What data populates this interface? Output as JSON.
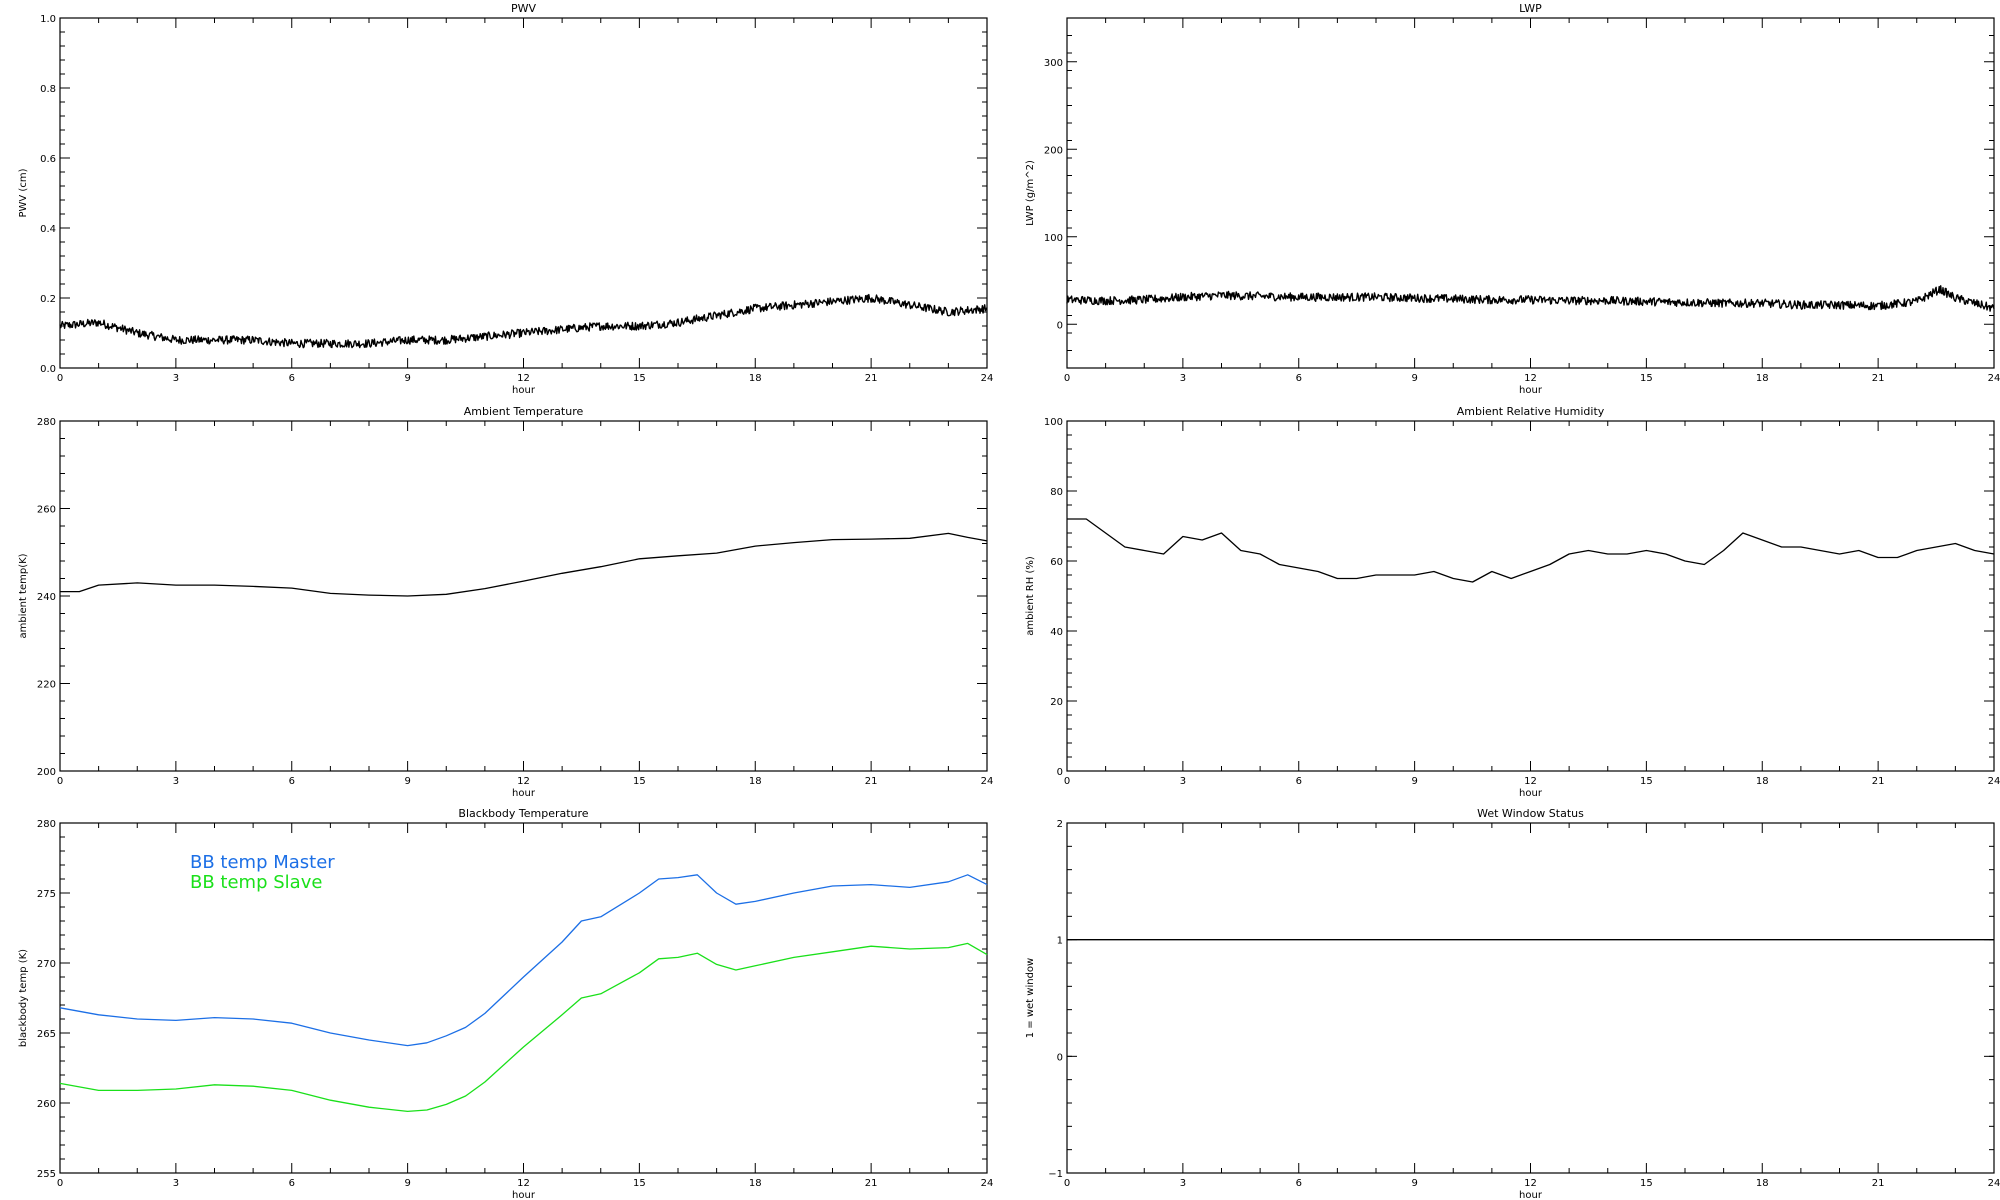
{
  "chart_data": [
    {
      "type": "line",
      "title": "PWV",
      "xlabel": "hour",
      "ylabel": "PWV (cm)",
      "xlim": [
        0,
        24
      ],
      "ylim": [
        0.0,
        1.0
      ],
      "xticks": [
        "0",
        "3",
        "6",
        "9",
        "12",
        "15",
        "18",
        "21",
        "24"
      ],
      "yticks": [
        "0.0",
        "0.2",
        "0.4",
        "0.6",
        "0.8",
        "1.0"
      ],
      "noisy": true,
      "series": [
        {
          "color": "#000000",
          "x": [
            0,
            1,
            2,
            3,
            4,
            5,
            6,
            7,
            8,
            9,
            10,
            11,
            12,
            13,
            14,
            15,
            16,
            17,
            18,
            19,
            20,
            21,
            22,
            23,
            24
          ],
          "values": [
            0.12,
            0.13,
            0.1,
            0.08,
            0.08,
            0.08,
            0.07,
            0.07,
            0.07,
            0.08,
            0.08,
            0.09,
            0.1,
            0.11,
            0.12,
            0.12,
            0.13,
            0.15,
            0.17,
            0.18,
            0.19,
            0.2,
            0.18,
            0.16,
            0.17
          ]
        }
      ]
    },
    {
      "type": "line",
      "title": "LWP",
      "xlabel": "hour",
      "ylabel": "LWP (g/m^2)",
      "xlim": [
        0,
        24
      ],
      "ylim": [
        -50,
        350
      ],
      "xticks": [
        "0",
        "3",
        "6",
        "9",
        "12",
        "15",
        "18",
        "21",
        "24"
      ],
      "yticks": [
        "0",
        "100",
        "200",
        "300"
      ],
      "noisy": true,
      "series": [
        {
          "color": "#000000",
          "x": [
            0,
            1,
            2,
            3,
            4,
            5,
            6,
            7,
            8,
            9,
            10,
            11,
            12,
            13,
            14,
            15,
            16,
            17,
            18,
            19,
            20,
            21,
            22,
            22.6,
            23,
            24
          ],
          "values": [
            28,
            27,
            28,
            31,
            33,
            32,
            31,
            31,
            31,
            30,
            29,
            28,
            28,
            27,
            27,
            26,
            25,
            24,
            24,
            22,
            22,
            21,
            26,
            40,
            30,
            18
          ]
        }
      ]
    },
    {
      "type": "line",
      "title": "Ambient Temperature",
      "xlabel": "hour",
      "ylabel": "ambient temp(K)",
      "xlim": [
        0,
        24
      ],
      "ylim": [
        200,
        280
      ],
      "xticks": [
        "0",
        "3",
        "6",
        "9",
        "12",
        "15",
        "18",
        "21",
        "24"
      ],
      "yticks": [
        "200",
        "220",
        "240",
        "260",
        "280"
      ],
      "noisy": false,
      "series": [
        {
          "color": "#000000",
          "x": [
            0,
            0.5,
            1,
            2,
            3,
            4,
            5,
            6,
            7,
            8,
            9,
            10,
            11,
            12,
            13,
            14,
            15,
            16,
            17,
            18,
            19,
            20,
            21,
            22,
            23,
            23.5,
            24
          ],
          "values": [
            241,
            241,
            242.5,
            243,
            242.5,
            242.5,
            242.2,
            241.8,
            240.6,
            240.2,
            240,
            240.4,
            241.7,
            243.4,
            245.2,
            246.7,
            248.5,
            249.2,
            249.8,
            251.4,
            252.2,
            252.9,
            253,
            253.2,
            254.3,
            253.4,
            252.6
          ]
        }
      ]
    },
    {
      "type": "line",
      "title": "Ambient Relative Humidity",
      "xlabel": "hour",
      "ylabel": "ambient RH (%)",
      "xlim": [
        0,
        24
      ],
      "ylim": [
        0,
        100
      ],
      "xticks": [
        "0",
        "3",
        "6",
        "9",
        "12",
        "15",
        "18",
        "21",
        "24"
      ],
      "yticks": [
        "0",
        "20",
        "40",
        "60",
        "80",
        "100"
      ],
      "noisy": false,
      "series": [
        {
          "color": "#000000",
          "x": [
            0,
            0.5,
            1,
            1.5,
            2,
            2.5,
            3,
            3.5,
            4,
            4.5,
            5,
            5.5,
            6,
            6.5,
            7,
            7.5,
            8,
            8.5,
            9,
            9.5,
            10,
            10.5,
            11,
            11.5,
            12,
            12.5,
            13,
            13.5,
            14,
            14.5,
            15,
            15.5,
            16,
            16.5,
            17,
            17.5,
            18,
            18.5,
            19,
            19.5,
            20,
            20.5,
            21,
            21.5,
            22,
            22.5,
            23,
            23.5,
            24
          ],
          "values": [
            72,
            72,
            68,
            64,
            63,
            62,
            67,
            66,
            68,
            63,
            62,
            59,
            58,
            57,
            55,
            55,
            56,
            56,
            56,
            57,
            55,
            54,
            57,
            55,
            57,
            59,
            62,
            63,
            62,
            62,
            63,
            62,
            60,
            59,
            63,
            68,
            66,
            64,
            64,
            63,
            62,
            63,
            61,
            61,
            63,
            64,
            65,
            63,
            62
          ]
        }
      ]
    },
    {
      "type": "line",
      "title": "Blackbody Temperature",
      "xlabel": "hour",
      "ylabel": "blackbody temp (K)",
      "xlim": [
        0,
        24
      ],
      "ylim": [
        255,
        280
      ],
      "xticks": [
        "0",
        "3",
        "6",
        "9",
        "12",
        "15",
        "18",
        "21",
        "24"
      ],
      "yticks": [
        "255",
        "260",
        "265",
        "270",
        "275",
        "280"
      ],
      "legend": "top-left",
      "noisy": false,
      "series": [
        {
          "name": "BB temp Master",
          "color": "#1c6fe6",
          "x": [
            0,
            1,
            2,
            3,
            4,
            5,
            6,
            7,
            8,
            9,
            9.5,
            10,
            10.5,
            11,
            12,
            13,
            13.5,
            14,
            15,
            15.5,
            16,
            16.5,
            17,
            17.5,
            18,
            19,
            20,
            21,
            22,
            23,
            23.5,
            24
          ],
          "values": [
            266.8,
            266.3,
            266,
            265.9,
            266.1,
            266,
            265.7,
            265,
            264.5,
            264.1,
            264.3,
            264.8,
            265.4,
            266.4,
            269,
            271.5,
            273,
            273.3,
            275,
            276,
            276.1,
            276.3,
            275,
            274.2,
            274.4,
            275,
            275.5,
            275.6,
            275.4,
            275.8,
            276.3,
            275.6
          ]
        },
        {
          "name": "BB temp Slave",
          "color": "#1ae01a",
          "x": [
            0,
            1,
            2,
            3,
            4,
            5,
            6,
            7,
            8,
            9,
            9.5,
            10,
            10.5,
            11,
            12,
            13,
            13.5,
            14,
            15,
            15.5,
            16,
            16.5,
            17,
            17.5,
            18,
            19,
            20,
            21,
            22,
            23,
            23.5,
            24
          ],
          "values": [
            261.4,
            260.9,
            260.9,
            261,
            261.3,
            261.2,
            260.9,
            260.2,
            259.7,
            259.4,
            259.5,
            259.9,
            260.5,
            261.5,
            264,
            266.3,
            267.5,
            267.8,
            269.3,
            270.3,
            270.4,
            270.7,
            269.9,
            269.5,
            269.8,
            270.4,
            270.8,
            271.2,
            271,
            271.1,
            271.4,
            270.6
          ]
        }
      ]
    },
    {
      "type": "line",
      "title": "Wet Window Status",
      "xlabel": "hour",
      "ylabel": "1 = wet window",
      "xlim": [
        0,
        24
      ],
      "ylim": [
        -1,
        2
      ],
      "xticks": [
        "0",
        "3",
        "6",
        "9",
        "12",
        "15",
        "18",
        "21",
        "24"
      ],
      "yticks": [
        "−1",
        "0",
        "1",
        "2"
      ],
      "noisy": false,
      "series": [
        {
          "color": "#000000",
          "x": [
            0,
            24
          ],
          "values": [
            1,
            1
          ]
        }
      ]
    }
  ]
}
